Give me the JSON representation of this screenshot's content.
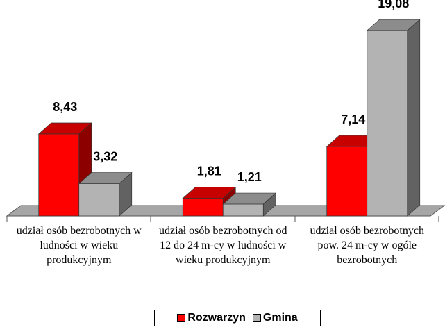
{
  "chart_data": {
    "type": "bar3d",
    "categories": [
      "udział osób bezrobotnych w ludności w wieku produkcyjnym",
      "udział osób bezrobotnych od 12 do 24 m-cy w ludności w wieku produkcyjnym",
      "udział osób bezrobotnych pow. 24 m-cy w ogóle bezrobotnych"
    ],
    "series": [
      {
        "name": "Rozwarzyn",
        "color": "#ff0000",
        "values": [
          8.43,
          1.81,
          7.14
        ],
        "value_labels": [
          "8,43",
          "1,81",
          "7,14"
        ]
      },
      {
        "name": "Gmina",
        "color": "#b3b3b3",
        "values": [
          3.32,
          1.21,
          19.08
        ],
        "value_labels": [
          "3,32",
          "1,21",
          "19,08"
        ]
      }
    ],
    "legend": "bottom"
  }
}
